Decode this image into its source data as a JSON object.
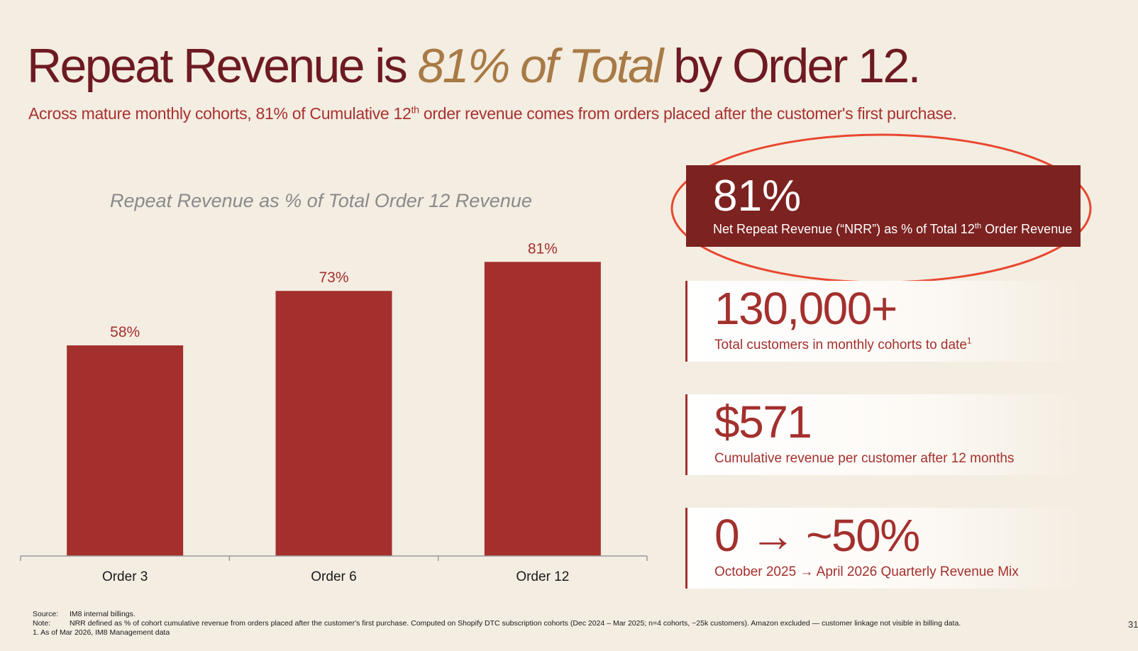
{
  "title": {
    "part1": "Repeat Revenue is ",
    "accent": "81% of Total",
    "part2": " by Order 12."
  },
  "subtitle": {
    "before": "Across mature monthly cohorts, 81% of Cumulative 12",
    "sup": "th",
    "after": " order revenue comes from orders placed after the customer's first purchase."
  },
  "chart_data": {
    "type": "bar",
    "title": "Repeat Revenue as % of Total Order 12 Revenue",
    "categories": [
      "Order 3",
      "Order 6",
      "Order 12"
    ],
    "values": [
      58,
      73,
      81
    ],
    "value_labels": [
      "58%",
      "73%",
      "81%"
    ],
    "ylim": [
      0,
      100
    ],
    "xlabel": "",
    "ylabel": "",
    "grid": false,
    "legend": "none",
    "bar_color": "#a3302d"
  },
  "kpis": {
    "nrr": {
      "value": "81%",
      "label_before": "Net Repeat Revenue (“NRR”) as % of Total 12",
      "label_sup": "th",
      "label_after": " Order Revenue"
    },
    "customers": {
      "value": "130,000+",
      "label": "Total customers in monthly cohorts to date",
      "label_sup": "1"
    },
    "revenue": {
      "value": "$571",
      "label": "Cumulative revenue per customer after 12 months"
    },
    "mix": {
      "value": "0 → ~50%",
      "label": "October 2025 → April 2026 Quarterly Revenue Mix"
    }
  },
  "footnotes": {
    "source_key": "Source:",
    "source_text": "IM8 internal billings.",
    "note_key": "Note:",
    "note_text": "NRR defined as % of cohort cumulative revenue from orders placed after the customer's first purchase. Computed on Shopify DTC subscription cohorts (Dec 2024 – Mar 2025; n=4 cohorts, ~25k customers). Amazon excluded — customer linkage not visible in billing data.",
    "footnote_1": "1. As of Mar 2026, IM8 Management data"
  },
  "page_number": "31",
  "colors": {
    "background": "#f4ede2",
    "title": "#6e1a22",
    "accent": "#a87a45",
    "brand_red": "#a3302d",
    "highlight_box": "#7c2220",
    "oval": "#e8472f"
  }
}
